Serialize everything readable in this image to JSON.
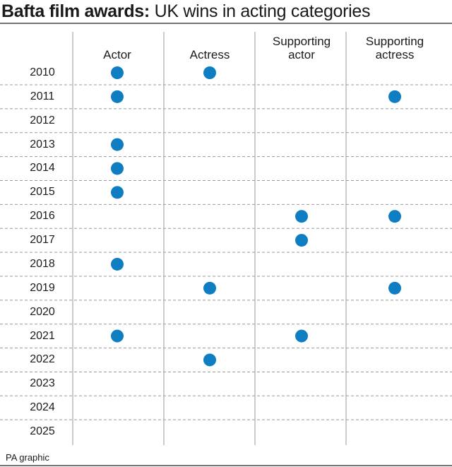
{
  "title": {
    "bold": "Bafta film awards:",
    "rest": "UK wins in acting categories"
  },
  "columns": [
    "Actor",
    "Actress",
    "Supporting actor",
    "Supporting actress"
  ],
  "rows": [
    {
      "year": "2010",
      "wins": [
        true,
        true,
        false,
        false
      ]
    },
    {
      "year": "2011",
      "wins": [
        true,
        false,
        false,
        true
      ]
    },
    {
      "year": "2012",
      "wins": [
        false,
        false,
        false,
        false
      ]
    },
    {
      "year": "2013",
      "wins": [
        true,
        false,
        false,
        false
      ]
    },
    {
      "year": "2014",
      "wins": [
        true,
        false,
        false,
        false
      ]
    },
    {
      "year": "2015",
      "wins": [
        true,
        false,
        false,
        false
      ]
    },
    {
      "year": "2016",
      "wins": [
        false,
        false,
        true,
        true
      ]
    },
    {
      "year": "2017",
      "wins": [
        false,
        false,
        true,
        false
      ]
    },
    {
      "year": "2018",
      "wins": [
        true,
        false,
        false,
        false
      ]
    },
    {
      "year": "2019",
      "wins": [
        false,
        true,
        false,
        true
      ]
    },
    {
      "year": "2020",
      "wins": [
        false,
        false,
        false,
        false
      ]
    },
    {
      "year": "2021",
      "wins": [
        true,
        false,
        true,
        false
      ]
    },
    {
      "year": "2022",
      "wins": [
        false,
        true,
        false,
        false
      ]
    },
    {
      "year": "2023",
      "wins": [
        false,
        false,
        false,
        false
      ]
    },
    {
      "year": "2024",
      "wins": [
        false,
        false,
        false,
        false
      ]
    },
    {
      "year": "2025",
      "wins": [
        false,
        false,
        false,
        false
      ]
    }
  ],
  "source": "PA graphic",
  "dot_color": "#0f7dc1"
}
